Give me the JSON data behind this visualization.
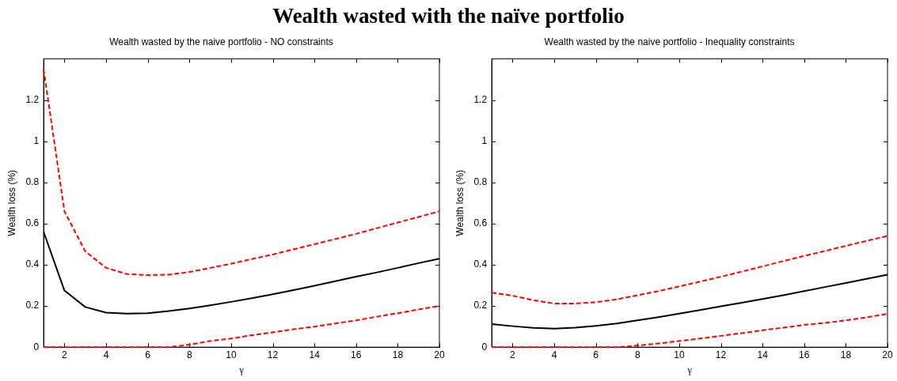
{
  "chart_data": [
    {
      "type": "other",
      "title": "Wealth wasted with the naïve portfolio"
    },
    {
      "type": "line",
      "title": "Wealth wasted by the naive portfolio - NO constraints",
      "xlabel": "γ",
      "ylabel": "Wealth loss (%)",
      "x": [
        1,
        2,
        3,
        4,
        5,
        6,
        7,
        8,
        9,
        10,
        11,
        12,
        13,
        14,
        15,
        16,
        17,
        18,
        19,
        20
      ],
      "series": [
        {
          "color": "#ff0000",
          "line_style": "dashed",
          "values": [
            1.35,
            0.66,
            0.465,
            0.385,
            0.355,
            0.35,
            0.352,
            0.365,
            0.385,
            0.405,
            0.428,
            0.45,
            0.475,
            0.5,
            0.525,
            0.55,
            0.578,
            0.605,
            0.632,
            0.66
          ]
        },
        {
          "color": "#000000",
          "line_style": "solid",
          "values": [
            0.56,
            0.275,
            0.195,
            0.168,
            0.163,
            0.165,
            0.175,
            0.188,
            0.203,
            0.22,
            0.238,
            0.257,
            0.277,
            0.298,
            0.32,
            0.342,
            0.363,
            0.385,
            0.408,
            0.43
          ]
        },
        {
          "color": "#ff0000",
          "line_style": "dashed",
          "values": [
            0,
            0,
            0,
            0,
            0,
            0,
            0,
            0.012,
            0.03,
            0.042,
            0.058,
            0.072,
            0.087,
            0.1,
            0.115,
            0.13,
            0.148,
            0.165,
            0.183,
            0.2
          ]
        }
      ],
      "xlim": [
        1,
        20
      ],
      "xticks": [
        2,
        4,
        6,
        8,
        10,
        12,
        14,
        16,
        18,
        20
      ],
      "ylim": [
        0,
        1.4
      ],
      "yticks": [
        0,
        0.2,
        0.4,
        0.6,
        0.8,
        1,
        1.2
      ],
      "grid": false,
      "legend": false,
      "marker": "none"
    },
    {
      "type": "line",
      "title": "Wealth wasted by the naive portfolio - Inequality constraints",
      "xlabel": "γ",
      "ylabel": "Wealth loss (%)",
      "x": [
        1,
        2,
        3,
        4,
        5,
        6,
        7,
        8,
        9,
        10,
        11,
        12,
        13,
        14,
        15,
        16,
        17,
        18,
        19,
        20
      ],
      "series": [
        {
          "color": "#ff0000",
          "line_style": "dashed",
          "values": [
            0.265,
            0.25,
            0.228,
            0.212,
            0.212,
            0.218,
            0.232,
            0.252,
            0.272,
            0.295,
            0.318,
            0.342,
            0.367,
            0.392,
            0.418,
            0.443,
            0.467,
            0.492,
            0.516,
            0.54
          ]
        },
        {
          "color": "#000000",
          "line_style": "solid",
          "values": [
            0.112,
            0.102,
            0.094,
            0.09,
            0.095,
            0.103,
            0.115,
            0.13,
            0.146,
            0.163,
            0.18,
            0.198,
            0.216,
            0.234,
            0.252,
            0.272,
            0.292,
            0.312,
            0.332,
            0.352
          ]
        },
        {
          "color": "#ff0000",
          "line_style": "dashed",
          "values": [
            0,
            0,
            0,
            0,
            0,
            0,
            0,
            0.008,
            0.018,
            0.03,
            0.042,
            0.055,
            0.068,
            0.082,
            0.095,
            0.108,
            0.118,
            0.13,
            0.145,
            0.162
          ]
        }
      ],
      "xlim": [
        1,
        20
      ],
      "xticks": [
        2,
        4,
        6,
        8,
        10,
        12,
        14,
        16,
        18,
        20
      ],
      "ylim": [
        0,
        1.4
      ],
      "yticks": [
        0,
        0.2,
        0.4,
        0.6,
        0.8,
        1,
        1.2
      ],
      "grid": false,
      "legend": false,
      "marker": "none"
    }
  ]
}
